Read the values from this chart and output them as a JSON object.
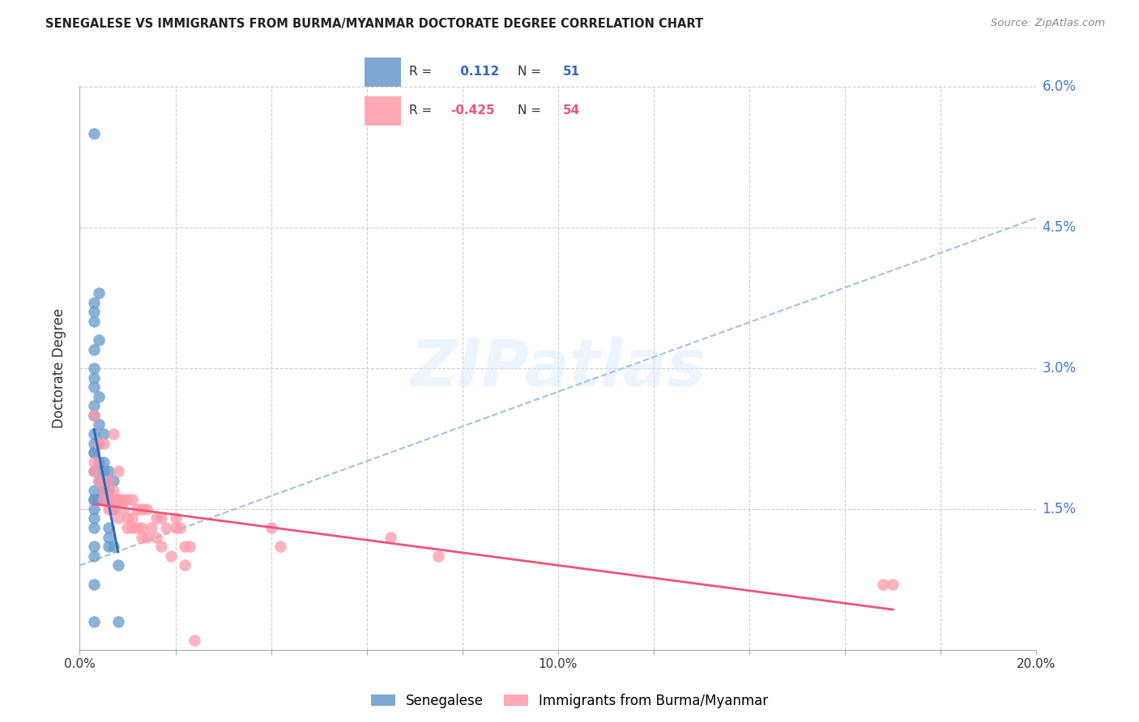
{
  "title": "SENEGALESE VS IMMIGRANTS FROM BURMA/MYANMAR DOCTORATE DEGREE CORRELATION CHART",
  "source": "Source: ZipAtlas.com",
  "ylabel": "Doctorate Degree",
  "xlim": [
    0.0,
    0.2
  ],
  "ylim": [
    0.0,
    0.06
  ],
  "ytick_values": [
    0.0,
    0.015,
    0.03,
    0.045,
    0.06
  ],
  "xtick_values": [
    0.0,
    0.02,
    0.04,
    0.06,
    0.08,
    0.1,
    0.12,
    0.14,
    0.16,
    0.18,
    0.2
  ],
  "blue_color": "#6699CC",
  "pink_color": "#FF99AA",
  "blue_line_color": "#3366BB",
  "pink_line_color": "#EE5577",
  "dashed_color": "#99BBDD",
  "blue_R": 0.112,
  "blue_N": 51,
  "pink_R": -0.425,
  "pink_N": 54,
  "watermark": "ZIPatlas",
  "legend_labels": [
    "Senegalese",
    "Immigrants from Burma/Myanmar"
  ],
  "blue_scatter_x": [
    0.003,
    0.004,
    0.003,
    0.003,
    0.003,
    0.004,
    0.003,
    0.003,
    0.003,
    0.003,
    0.004,
    0.003,
    0.003,
    0.004,
    0.005,
    0.003,
    0.004,
    0.003,
    0.003,
    0.003,
    0.004,
    0.005,
    0.003,
    0.006,
    0.005,
    0.006,
    0.007,
    0.004,
    0.005,
    0.005,
    0.006,
    0.003,
    0.003,
    0.006,
    0.004,
    0.003,
    0.005,
    0.003,
    0.007,
    0.003,
    0.003,
    0.006,
    0.006,
    0.006,
    0.003,
    0.007,
    0.003,
    0.008,
    0.003,
    0.003,
    0.008
  ],
  "blue_scatter_y": [
    0.055,
    0.038,
    0.037,
    0.036,
    0.035,
    0.033,
    0.032,
    0.03,
    0.029,
    0.028,
    0.027,
    0.026,
    0.025,
    0.024,
    0.023,
    0.023,
    0.022,
    0.022,
    0.021,
    0.021,
    0.02,
    0.02,
    0.019,
    0.019,
    0.019,
    0.018,
    0.018,
    0.018,
    0.017,
    0.017,
    0.017,
    0.017,
    0.016,
    0.016,
    0.016,
    0.016,
    0.016,
    0.015,
    0.015,
    0.014,
    0.013,
    0.013,
    0.012,
    0.011,
    0.011,
    0.011,
    0.01,
    0.009,
    0.007,
    0.003,
    0.003
  ],
  "pink_scatter_x": [
    0.003,
    0.003,
    0.003,
    0.004,
    0.004,
    0.005,
    0.005,
    0.005,
    0.006,
    0.006,
    0.006,
    0.007,
    0.007,
    0.007,
    0.007,
    0.008,
    0.008,
    0.008,
    0.008,
    0.009,
    0.009,
    0.01,
    0.01,
    0.01,
    0.011,
    0.011,
    0.011,
    0.012,
    0.012,
    0.013,
    0.013,
    0.013,
    0.014,
    0.014,
    0.015,
    0.016,
    0.016,
    0.017,
    0.017,
    0.018,
    0.019,
    0.02,
    0.02,
    0.021,
    0.022,
    0.022,
    0.023,
    0.024,
    0.04,
    0.042,
    0.065,
    0.075,
    0.168,
    0.17
  ],
  "pink_scatter_y": [
    0.025,
    0.02,
    0.019,
    0.022,
    0.018,
    0.022,
    0.017,
    0.016,
    0.018,
    0.016,
    0.015,
    0.023,
    0.017,
    0.016,
    0.015,
    0.019,
    0.016,
    0.016,
    0.014,
    0.016,
    0.015,
    0.016,
    0.014,
    0.013,
    0.016,
    0.014,
    0.013,
    0.015,
    0.013,
    0.015,
    0.013,
    0.012,
    0.015,
    0.012,
    0.013,
    0.014,
    0.012,
    0.014,
    0.011,
    0.013,
    0.01,
    0.014,
    0.013,
    0.013,
    0.011,
    0.009,
    0.011,
    0.001,
    0.013,
    0.011,
    0.012,
    0.01,
    0.007,
    0.007
  ],
  "dashed_line_x": [
    0.0,
    0.2
  ],
  "dashed_line_y": [
    0.009,
    0.046
  ]
}
